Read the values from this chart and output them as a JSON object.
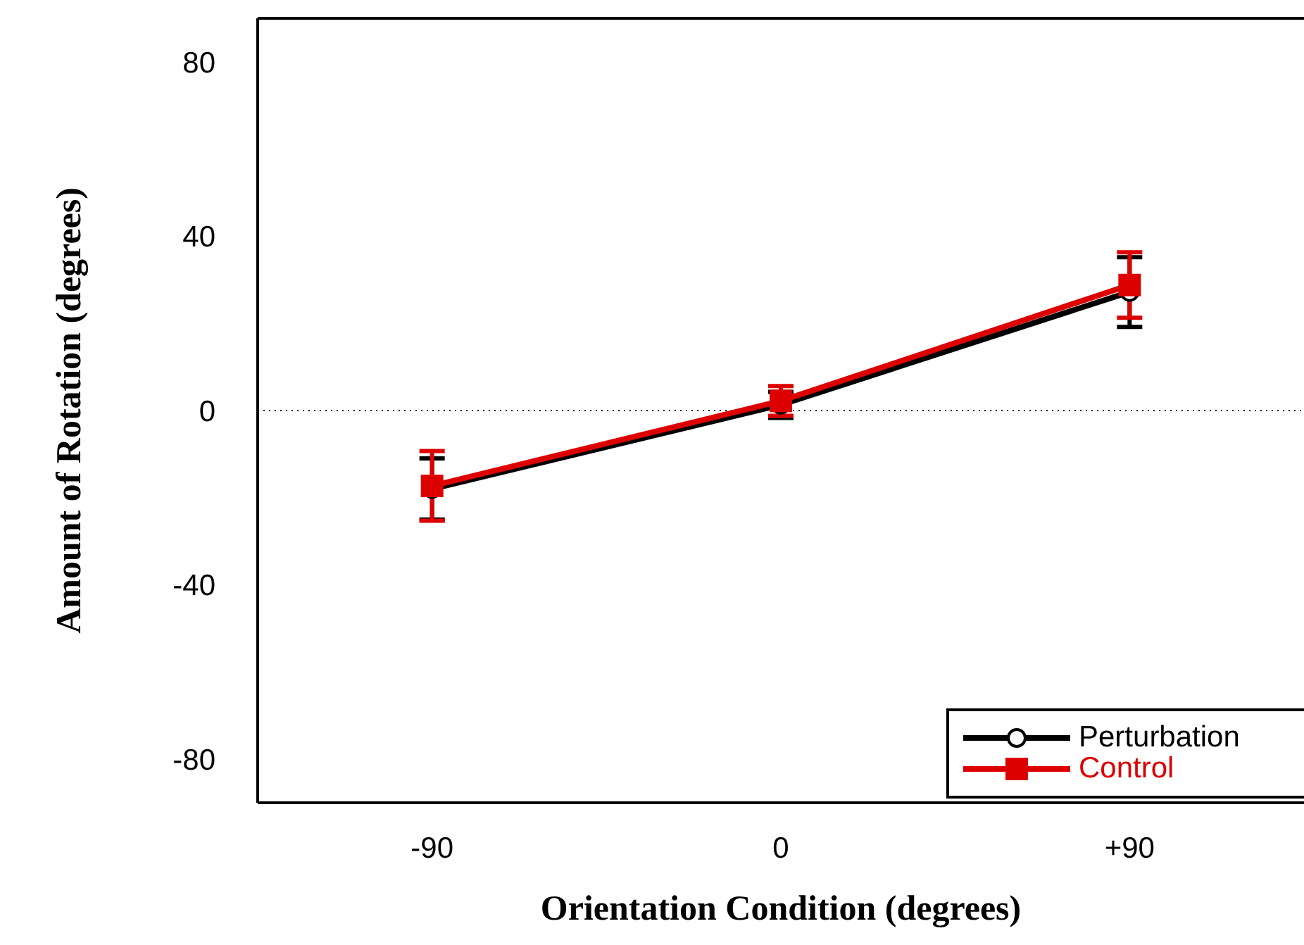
{
  "chart_data": {
    "type": "line",
    "xlabel": "Orientation Condition (degrees)",
    "ylabel": "Amount of Rotation (degrees)",
    "x": [
      -90,
      0,
      90
    ],
    "series": [
      {
        "name": "Perturbation",
        "color": "#000000",
        "marker": "circle",
        "values": [
          -18,
          1.3,
          27.2
        ],
        "errors": [
          7,
          3,
          8
        ]
      },
      {
        "name": "Control",
        "color": "#dd0000",
        "marker": "square",
        "values": [
          -17.3,
          2.2,
          28.8
        ],
        "errors": [
          8,
          3.4,
          7.5
        ]
      }
    ],
    "xlim": [
      -135,
      135
    ],
    "xticks": [
      -90,
      0,
      {
        "value": 90,
        "label": "+90"
      }
    ],
    "ylim": [
      -90,
      90
    ],
    "yticks": [
      -80,
      -40,
      0,
      40,
      80
    ],
    "ref_lines": [
      {
        "axis": "y",
        "value": 0,
        "line_style": "dotted",
        "color": "#000000"
      }
    ],
    "grid": false,
    "legend": "bottom right",
    "line_style": "solid"
  }
}
